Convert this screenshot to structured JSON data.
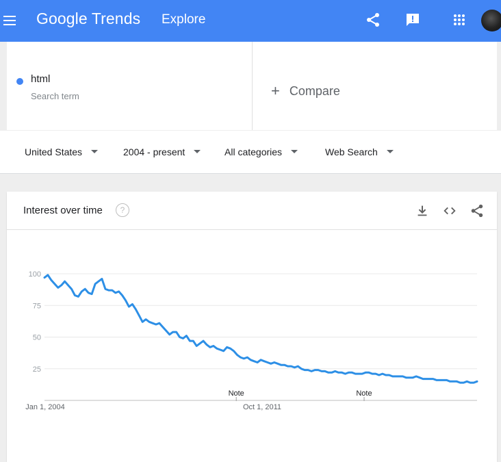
{
  "topbar": {
    "logo_google": "Google",
    "logo_trends": "Trends",
    "page": "Explore",
    "menu_icon": "hamburger-menu-icon",
    "share_icon": "share-icon",
    "feedback_icon": "feedback-icon",
    "apps_icon": "apps-grid-icon"
  },
  "search_term": {
    "name": "html",
    "subtitle": "Search term",
    "color": "#4285f4"
  },
  "compare": {
    "plus": "+",
    "label": "Compare"
  },
  "filters": {
    "region": "United States",
    "time": "2004 - present",
    "category": "All categories",
    "property": "Web Search"
  },
  "card": {
    "title": "Interest over time",
    "help": "?"
  },
  "chart_data": {
    "type": "line",
    "y_ticks": [
      "100",
      "75",
      "50",
      "25"
    ],
    "ylim": [
      0,
      100
    ],
    "x_tick_labels": [
      "Jan 1, 2004",
      "Oct 1, 2011"
    ],
    "xlim": [
      "2004-01",
      "2020-12"
    ],
    "notes": [
      {
        "label": "Note",
        "x": "2011-07"
      },
      {
        "label": "Note",
        "x": "2016-07"
      }
    ],
    "line_color": "#2d8fe6",
    "series": [
      {
        "values": [
          97,
          99,
          95,
          92,
          89,
          91,
          94,
          91,
          88,
          83,
          82,
          86,
          88,
          85,
          84,
          92,
          94,
          96,
          88,
          87,
          87,
          85,
          86,
          83,
          79,
          74,
          76,
          72,
          67,
          62,
          64,
          62,
          61,
          60,
          61,
          58,
          55,
          52,
          54,
          54,
          50,
          49,
          51,
          47,
          47,
          43,
          45,
          47,
          44,
          42,
          43,
          41,
          40,
          39,
          42,
          41,
          39,
          36,
          34,
          33,
          34,
          32,
          31,
          30,
          32,
          31,
          30,
          29,
          30,
          29,
          28,
          28,
          27,
          27,
          26,
          27,
          25,
          24,
          24,
          23,
          24,
          24,
          23,
          23,
          22,
          22,
          23,
          22,
          22,
          21,
          22,
          22,
          21,
          21,
          21,
          22,
          22,
          21,
          21,
          20,
          21,
          20,
          20,
          19,
          19,
          19,
          19,
          18,
          18,
          18,
          19,
          18,
          17,
          17,
          17,
          17,
          16,
          16,
          16,
          16,
          15,
          15,
          15,
          14,
          14,
          15,
          14,
          14,
          15
        ]
      }
    ]
  }
}
